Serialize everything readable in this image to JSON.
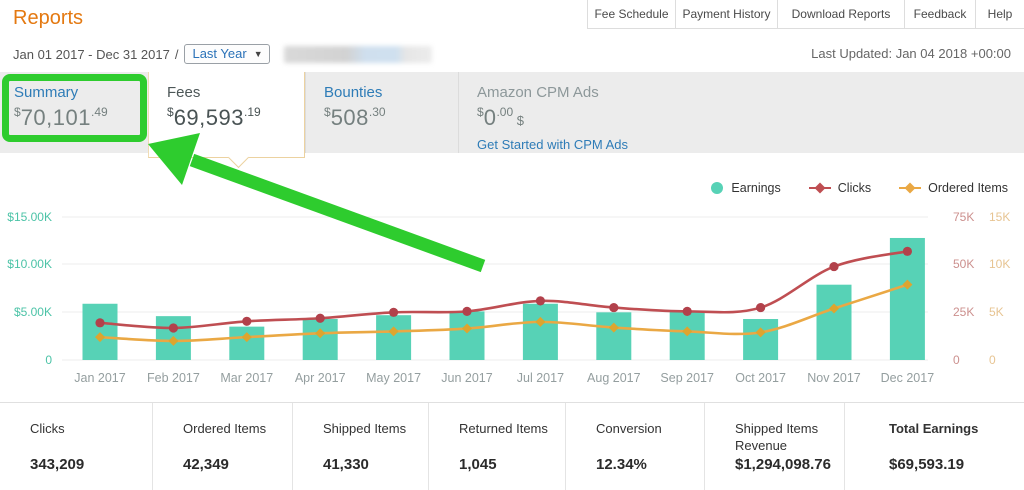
{
  "page": {
    "title": "Reports"
  },
  "top_nav": {
    "items": [
      {
        "label": "Fee Schedule"
      },
      {
        "label": "Payment History"
      },
      {
        "label": "Download Reports"
      },
      {
        "label": "Feedback"
      },
      {
        "label": "Help"
      }
    ]
  },
  "date_bar": {
    "range": "Jan 01 2017 - Dec 31 2017",
    "separator": "/",
    "period_select": "Last Year",
    "last_updated": "Last Updated: Jan 04 2018 +00:00"
  },
  "tabs": [
    {
      "label": "Summary",
      "currency": "$",
      "amount": "70,101",
      "cents": ".49"
    },
    {
      "label": "Fees",
      "currency": "$",
      "amount": "69,593",
      "cents": ".19"
    },
    {
      "label": "Bounties",
      "currency": "$",
      "amount": "508",
      "cents": ".30"
    },
    {
      "label": "Amazon CPM Ads",
      "currency": "$",
      "amount": "0",
      "cents": ".00",
      "suffix": " $",
      "link": "Get Started with CPM Ads"
    }
  ],
  "annotation": {
    "color": "#2ecc2e"
  },
  "colors": {
    "brand_orange": "#e47911",
    "link_blue": "#2e7cb7",
    "highlight_green": "#2ecc2e"
  },
  "chart_data": {
    "type": "bar",
    "title": "",
    "categories": [
      "Jan 2017",
      "Feb 2017",
      "Mar 2017",
      "Apr 2017",
      "May 2017",
      "Jun 2017",
      "Jul 2017",
      "Aug 2017",
      "Sep 2017",
      "Oct 2017",
      "Nov 2017",
      "Dec 2017"
    ],
    "series": [
      {
        "name": "Earnings",
        "type": "bar",
        "axis": "left",
        "color": "#57d2b6",
        "marker_color": "#57d2b6",
        "values": [
          5900,
          4600,
          3500,
          4300,
          4700,
          5100,
          5900,
          5000,
          5100,
          4300,
          7900,
          12800
        ]
      },
      {
        "name": "Clicks",
        "type": "line",
        "axis": "right1",
        "color": "#bf4e52",
        "marker_color": "#b2414b",
        "values": [
          19500,
          16800,
          20300,
          21900,
          25000,
          25500,
          31000,
          27500,
          25500,
          27500,
          49000,
          57000
        ]
      },
      {
        "name": "Ordered Items",
        "type": "line",
        "axis": "right2",
        "color": "#eaa844",
        "marker_color": "#dda52f",
        "values": [
          2400,
          2000,
          2400,
          2800,
          3000,
          3300,
          4000,
          3400,
          3000,
          2900,
          5400,
          7900
        ]
      }
    ],
    "axes": {
      "left": {
        "ticks": [
          "$15.00K",
          "$10.00K",
          "$5.00K",
          "0"
        ],
        "max": 15000,
        "color": "#4cc3a7"
      },
      "right1": {
        "ticks": [
          "75K",
          "50K",
          "25K",
          "0"
        ],
        "max": 75000,
        "color": "#cc908e"
      },
      "right2": {
        "ticks": [
          "15K",
          "10K",
          "5K",
          "0"
        ],
        "max": 15000,
        "color": "#e7c492"
      }
    },
    "grid": true,
    "legend_position": "top-right",
    "xlabel": "",
    "ylabel": ""
  },
  "stats": {
    "items": [
      {
        "label": "Clicks",
        "value": "343,209"
      },
      {
        "label": "Ordered Items",
        "value": "42,349"
      },
      {
        "label": "Shipped Items",
        "value": "41,330"
      },
      {
        "label": "Returned Items",
        "value": "1,045"
      },
      {
        "label": "Conversion",
        "value": "12.34%"
      },
      {
        "label": "Shipped Items Revenue",
        "value": "$1,294,098.76"
      },
      {
        "label": "Total Earnings",
        "value": "$69,593.19"
      }
    ]
  }
}
